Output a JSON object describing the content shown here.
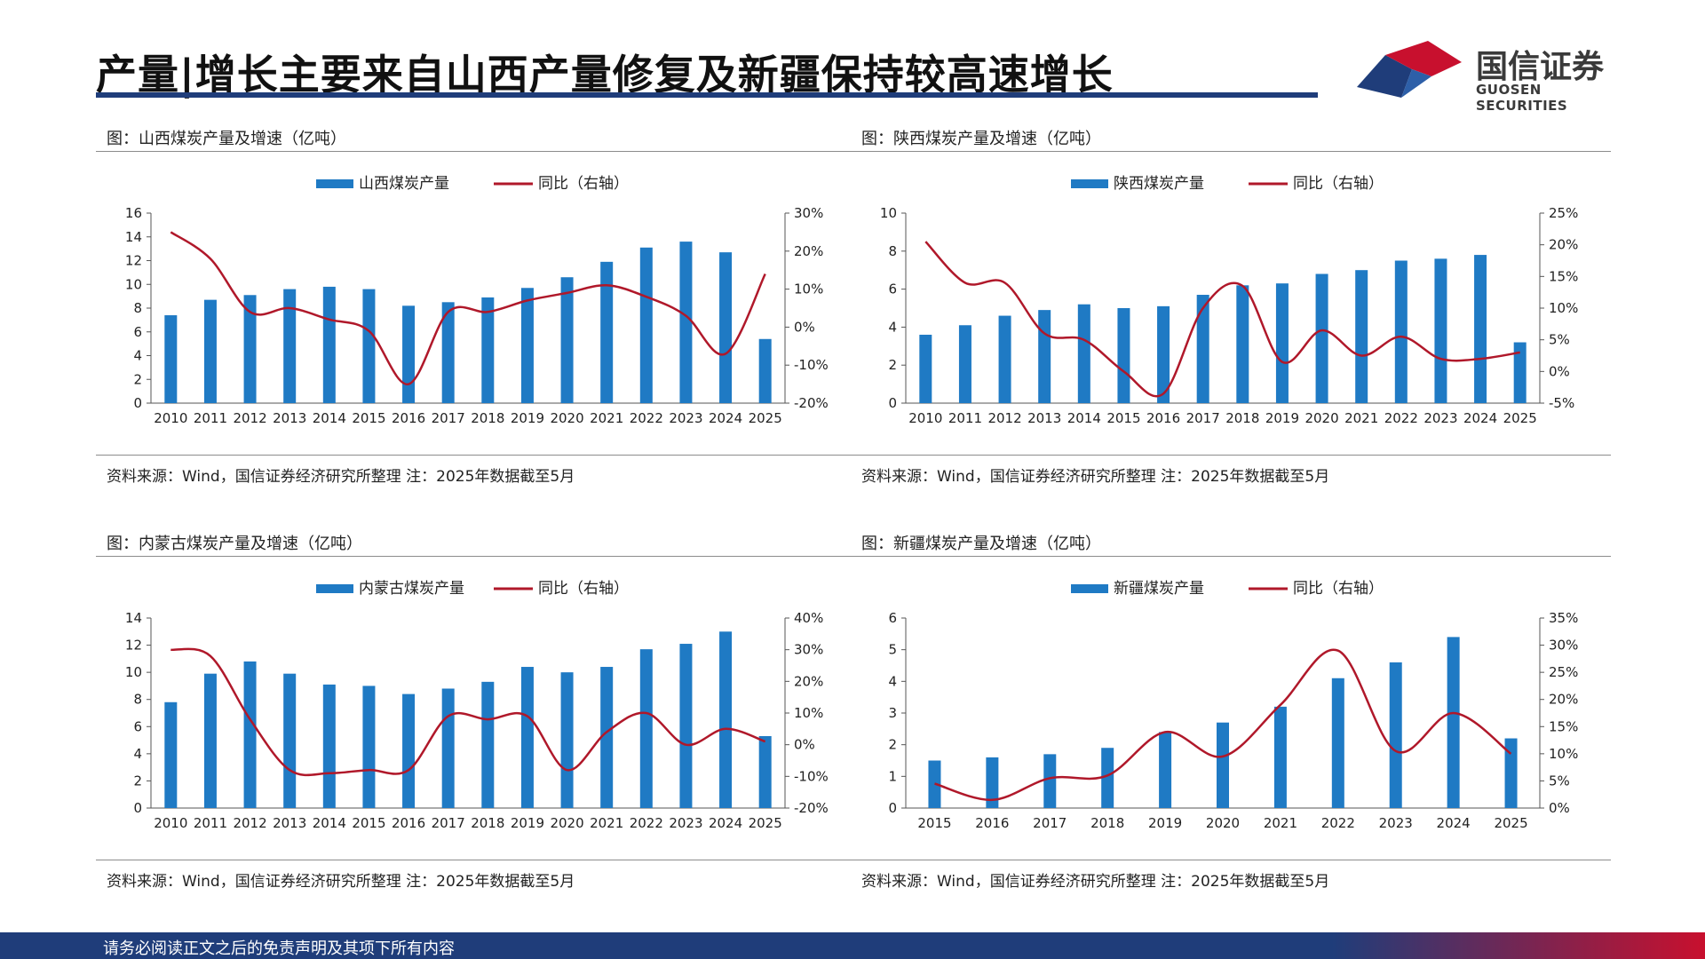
{
  "page": {
    "title": "产量|增长主要来自山西产量修复及新疆保持较高速增长",
    "footer": "请务必阅读正文之后的免责声明及其项下所有内容"
  },
  "logo": {
    "cn": "国信证券",
    "en": "GUOSEN SECURITIES"
  },
  "colors": {
    "bar": "#1f7ac4",
    "line": "#b0182a",
    "brand_navy": "#1f3d7a",
    "brand_red": "#c8102e"
  },
  "chart_data": [
    {
      "type": "bar",
      "title": "图：山西煤炭产量及增速（亿吨）",
      "source": "资料来源：Wind，国信证券经济研究所整理 注：2025年数据截至5月",
      "categories": [
        "2010",
        "2011",
        "2012",
        "2013",
        "2014",
        "2015",
        "2016",
        "2017",
        "2018",
        "2019",
        "2020",
        "2021",
        "2022",
        "2023",
        "2024",
        "2025"
      ],
      "series": [
        {
          "name": "山西煤炭产量",
          "kind": "bar",
          "axis": "left",
          "values": [
            7.4,
            8.7,
            9.1,
            9.6,
            9.8,
            9.6,
            8.2,
            8.5,
            8.9,
            9.7,
            10.6,
            11.9,
            13.1,
            13.6,
            12.7,
            5.4
          ]
        },
        {
          "name": "同比（右轴）",
          "kind": "line",
          "axis": "right",
          "values": [
            25,
            18,
            4,
            5,
            2,
            -1,
            -15,
            4,
            4,
            7,
            9,
            11,
            8,
            3,
            -7,
            14
          ]
        }
      ],
      "ylim": [
        0,
        16
      ],
      "yticks": [
        0,
        2,
        4,
        6,
        8,
        10,
        12,
        14,
        16
      ],
      "y2lim": [
        -20,
        30
      ],
      "y2ticks": [
        "-20%",
        "-10%",
        "0%",
        "10%",
        "20%",
        "30%"
      ],
      "legend": "top-center",
      "grid": false
    },
    {
      "type": "bar",
      "title": "图：陕西煤炭产量及增速（亿吨）",
      "source": "资料来源：Wind，国信证券经济研究所整理 注：2025年数据截至5月",
      "categories": [
        "2010",
        "2011",
        "2012",
        "2013",
        "2014",
        "2015",
        "2016",
        "2017",
        "2018",
        "2019",
        "2020",
        "2021",
        "2022",
        "2023",
        "2024",
        "2025"
      ],
      "series": [
        {
          "name": "陕西煤炭产量",
          "kind": "bar",
          "axis": "left",
          "values": [
            3.6,
            4.1,
            4.6,
            4.9,
            5.2,
            5.0,
            5.1,
            5.7,
            6.2,
            6.3,
            6.8,
            7.0,
            7.5,
            7.6,
            7.8,
            3.2
          ]
        },
        {
          "name": "同比（右轴）",
          "kind": "line",
          "axis": "right",
          "values": [
            20.5,
            14,
            14,
            6,
            5,
            0,
            -3.5,
            10,
            13.5,
            1.5,
            6.5,
            2.5,
            5.5,
            2,
            2,
            3
          ]
        }
      ],
      "ylim": [
        0,
        10
      ],
      "yticks": [
        0,
        2,
        4,
        6,
        8,
        10
      ],
      "y2lim": [
        -5,
        25
      ],
      "y2ticks": [
        "-5%",
        "0%",
        "5%",
        "10%",
        "15%",
        "20%",
        "25%"
      ],
      "legend": "top-center",
      "grid": false
    },
    {
      "type": "bar",
      "title": "图：内蒙古煤炭产量及增速（亿吨）",
      "source": "资料来源：Wind，国信证券经济研究所整理 注：2025年数据截至5月",
      "categories": [
        "2010",
        "2011",
        "2012",
        "2013",
        "2014",
        "2015",
        "2016",
        "2017",
        "2018",
        "2019",
        "2020",
        "2021",
        "2022",
        "2023",
        "2024",
        "2025"
      ],
      "series": [
        {
          "name": "内蒙古煤炭产量",
          "kind": "bar",
          "axis": "left",
          "values": [
            7.8,
            9.9,
            10.8,
            9.9,
            9.1,
            9.0,
            8.4,
            8.8,
            9.3,
            10.4,
            10.0,
            10.4,
            11.7,
            12.1,
            13.0,
            5.3
          ]
        },
        {
          "name": "同比（右轴）",
          "kind": "line",
          "axis": "right",
          "values": [
            30,
            28,
            8,
            -8,
            -9,
            -8,
            -8,
            9,
            8,
            9,
            -8,
            4,
            10,
            0,
            5,
            1
          ]
        }
      ],
      "ylim": [
        0,
        14
      ],
      "yticks": [
        0,
        2,
        4,
        6,
        8,
        10,
        12,
        14
      ],
      "y2lim": [
        -20,
        40
      ],
      "y2ticks": [
        "-20%",
        "-10%",
        "0%",
        "10%",
        "20%",
        "30%",
        "40%"
      ],
      "legend": "top-center",
      "grid": false
    },
    {
      "type": "bar",
      "title": "图：新疆煤炭产量及增速（亿吨）",
      "source": "资料来源：Wind，国信证券经济研究所整理 注：2025年数据截至5月",
      "categories": [
        "2015",
        "2016",
        "2017",
        "2018",
        "2019",
        "2020",
        "2021",
        "2022",
        "2023",
        "2024",
        "2025"
      ],
      "series": [
        {
          "name": "新疆煤炭产量",
          "kind": "bar",
          "axis": "left",
          "values": [
            1.5,
            1.6,
            1.7,
            1.9,
            2.4,
            2.7,
            3.2,
            4.1,
            4.6,
            5.4,
            2.2
          ]
        },
        {
          "name": "同比（右轴）",
          "kind": "line",
          "axis": "right",
          "values": [
            4.5,
            1.5,
            5.5,
            6,
            14,
            9.5,
            19,
            29,
            10.5,
            17.5,
            10
          ]
        }
      ],
      "ylim": [
        0,
        6
      ],
      "yticks": [
        0,
        1,
        2,
        3,
        4,
        5,
        6
      ],
      "y2lim": [
        0,
        35
      ],
      "y2ticks": [
        "0%",
        "5%",
        "10%",
        "15%",
        "20%",
        "25%",
        "30%",
        "35%"
      ],
      "legend": "top-center",
      "grid": false
    }
  ]
}
